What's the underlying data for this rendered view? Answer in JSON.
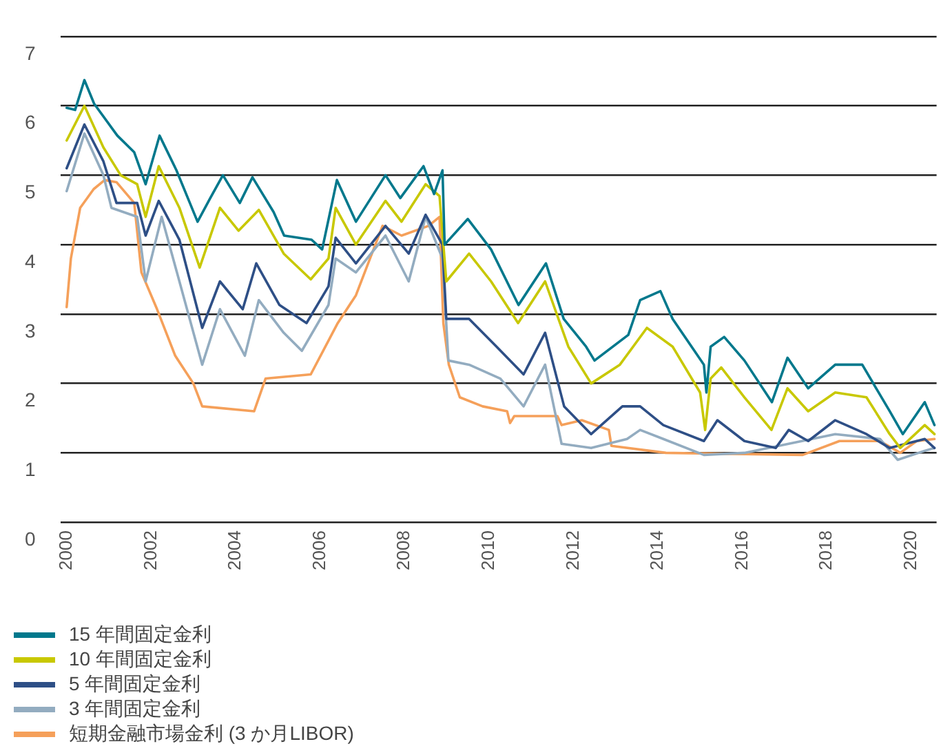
{
  "chart_data": {
    "type": "line",
    "xlim": [
      1999.85,
      2020.6
    ],
    "xticks": [
      2000,
      2002,
      2004,
      2006,
      2008,
      2010,
      2012,
      2014,
      2016,
      2018,
      2020
    ],
    "ylim": [
      0,
      7
    ],
    "yticks": [
      0,
      1,
      2,
      3,
      4,
      5,
      6,
      7
    ],
    "grid": "y",
    "legend": "bottom",
    "marker": "none",
    "line_style": "solid",
    "series": [
      {
        "name": "15 年間固定金利",
        "color": "#00788c",
        "x": [
          2000.0,
          2000.2,
          2000.42,
          2000.65,
          2001.2,
          2001.6,
          2001.87,
          2002.2,
          2002.6,
          2003.1,
          2003.4,
          2003.7,
          2004.1,
          2004.4,
          2004.9,
          2005.15,
          2005.8,
          2006.05,
          2006.4,
          2006.85,
          2007.55,
          2007.9,
          2008.45,
          2008.7,
          2008.9,
          2008.95,
          2009.5,
          2010.05,
          2010.7,
          2011.35,
          2011.77,
          2012.3,
          2012.5,
          2013.3,
          2013.58,
          2014.06,
          2014.35,
          2015.09,
          2015.15,
          2015.25,
          2015.57,
          2016.05,
          2016.7,
          2017.07,
          2017.56,
          2018.2,
          2018.84,
          2019.49,
          2019.8,
          2020.32,
          2020.55
        ],
        "values": [
          5.97,
          5.94,
          6.37,
          6.03,
          5.57,
          5.33,
          4.87,
          5.57,
          5.07,
          4.33,
          4.67,
          5.0,
          4.6,
          4.97,
          4.47,
          4.13,
          4.07,
          3.93,
          4.93,
          4.33,
          5.0,
          4.67,
          5.13,
          4.73,
          5.07,
          4.0,
          4.37,
          3.93,
          3.13,
          3.73,
          2.93,
          2.53,
          2.33,
          2.7,
          3.2,
          3.33,
          2.93,
          2.27,
          1.87,
          2.53,
          2.67,
          2.33,
          1.73,
          2.37,
          1.93,
          2.27,
          2.27,
          1.6,
          1.27,
          1.73,
          1.4
        ]
      },
      {
        "name": "10 年間固定金利",
        "color": "#c8c800",
        "x": [
          2000.0,
          2000.42,
          2000.87,
          2001.28,
          2001.67,
          2001.87,
          2002.18,
          2002.67,
          2003.15,
          2003.63,
          2004.07,
          2004.55,
          2005.14,
          2005.78,
          2006.2,
          2006.37,
          2006.85,
          2007.55,
          2007.93,
          2008.5,
          2008.83,
          2008.99,
          2009.53,
          2010.05,
          2010.69,
          2011.33,
          2011.88,
          2012.42,
          2013.1,
          2013.74,
          2014.35,
          2015.0,
          2015.12,
          2015.25,
          2015.5,
          2016.05,
          2016.69,
          2017.07,
          2017.56,
          2018.2,
          2018.94,
          2019.49,
          2019.74,
          2020.32,
          2020.55
        ],
        "values": [
          5.5,
          6.0,
          5.4,
          5.0,
          4.87,
          4.4,
          5.13,
          4.53,
          3.67,
          4.53,
          4.2,
          4.5,
          3.87,
          3.5,
          3.8,
          4.53,
          4.0,
          4.63,
          4.33,
          4.87,
          4.7,
          3.47,
          3.87,
          3.47,
          2.87,
          3.47,
          2.53,
          2.0,
          2.27,
          2.8,
          2.53,
          1.87,
          1.33,
          2.07,
          2.23,
          1.8,
          1.33,
          1.93,
          1.6,
          1.87,
          1.8,
          1.27,
          1.07,
          1.4,
          1.27
        ]
      },
      {
        "name": "5 年間固定金利",
        "color": "#2e4f86",
        "x": [
          2000.0,
          2000.42,
          2000.87,
          2001.18,
          2001.67,
          2001.87,
          2002.18,
          2002.67,
          2003.21,
          2003.63,
          2004.17,
          2004.49,
          2005.04,
          2005.68,
          2006.2,
          2006.37,
          2006.85,
          2007.55,
          2008.1,
          2008.5,
          2008.9,
          2008.99,
          2009.53,
          2010.18,
          2010.82,
          2011.33,
          2011.78,
          2012.42,
          2013.16,
          2013.58,
          2014.13,
          2015.09,
          2015.41,
          2016.05,
          2016.79,
          2017.1,
          2017.56,
          2018.2,
          2018.94,
          2019.49,
          2020.32,
          2020.55
        ],
        "values": [
          5.1,
          5.73,
          5.2,
          4.6,
          4.6,
          4.13,
          4.63,
          4.07,
          2.8,
          3.47,
          3.07,
          3.73,
          3.13,
          2.87,
          3.4,
          4.1,
          3.73,
          4.27,
          3.87,
          4.43,
          4.0,
          2.93,
          2.93,
          2.53,
          2.13,
          2.73,
          1.67,
          1.27,
          1.67,
          1.67,
          1.4,
          1.17,
          1.47,
          1.17,
          1.07,
          1.33,
          1.17,
          1.47,
          1.27,
          1.07,
          1.2,
          1.07
        ]
      },
      {
        "name": "3 年間固定金利",
        "color": "#93acc0",
        "x": [
          2000.0,
          2000.42,
          2000.87,
          2001.06,
          2001.67,
          2001.87,
          2002.25,
          2002.67,
          2003.21,
          2003.63,
          2004.22,
          2004.55,
          2005.14,
          2005.57,
          2006.2,
          2006.37,
          2006.85,
          2007.55,
          2008.1,
          2008.5,
          2008.9,
          2009.04,
          2009.53,
          2010.27,
          2010.82,
          2011.33,
          2011.72,
          2012.42,
          2013.27,
          2013.58,
          2014.13,
          2015.09,
          2016.05,
          2018.2,
          2019.26,
          2019.68,
          2020.32,
          2020.55
        ],
        "values": [
          4.77,
          5.6,
          5.0,
          4.53,
          4.4,
          3.47,
          4.4,
          3.47,
          2.27,
          3.07,
          2.4,
          3.2,
          2.73,
          2.47,
          3.13,
          3.8,
          3.6,
          4.13,
          3.47,
          4.4,
          3.8,
          2.33,
          2.27,
          2.07,
          1.67,
          2.27,
          1.13,
          1.07,
          1.2,
          1.33,
          1.2,
          0.97,
          1.0,
          1.27,
          1.2,
          0.9,
          1.03,
          1.07
        ]
      },
      {
        "name": "短期金融市場金利 (3 か月LIBOR)",
        "color": "#f5a05a",
        "x": [
          2000.0,
          2000.1,
          2000.32,
          2000.64,
          2000.9,
          2001.18,
          2001.6,
          2001.77,
          2002.14,
          2002.57,
          2003.0,
          2003.21,
          2004.44,
          2004.71,
          2005.78,
          2006.42,
          2006.85,
          2007.48,
          2007.93,
          2008.57,
          2008.83,
          2008.92,
          2009.05,
          2009.31,
          2009.85,
          2010.43,
          2010.5,
          2010.6,
          2011.62,
          2011.72,
          2012.2,
          2012.84,
          2012.9,
          2014.19,
          2017.43,
          2018.3,
          2019.26,
          2019.74,
          2020.13,
          2020.55
        ],
        "values": [
          3.1,
          3.8,
          4.53,
          4.8,
          4.93,
          4.9,
          4.6,
          3.6,
          3.07,
          2.4,
          2.0,
          1.67,
          1.6,
          2.07,
          2.13,
          2.87,
          3.27,
          4.27,
          4.13,
          4.27,
          4.4,
          2.87,
          2.27,
          1.8,
          1.67,
          1.6,
          1.43,
          1.53,
          1.53,
          1.4,
          1.47,
          1.33,
          1.1,
          1.0,
          0.97,
          1.17,
          1.17,
          1.0,
          1.17,
          1.2
        ]
      }
    ]
  }
}
